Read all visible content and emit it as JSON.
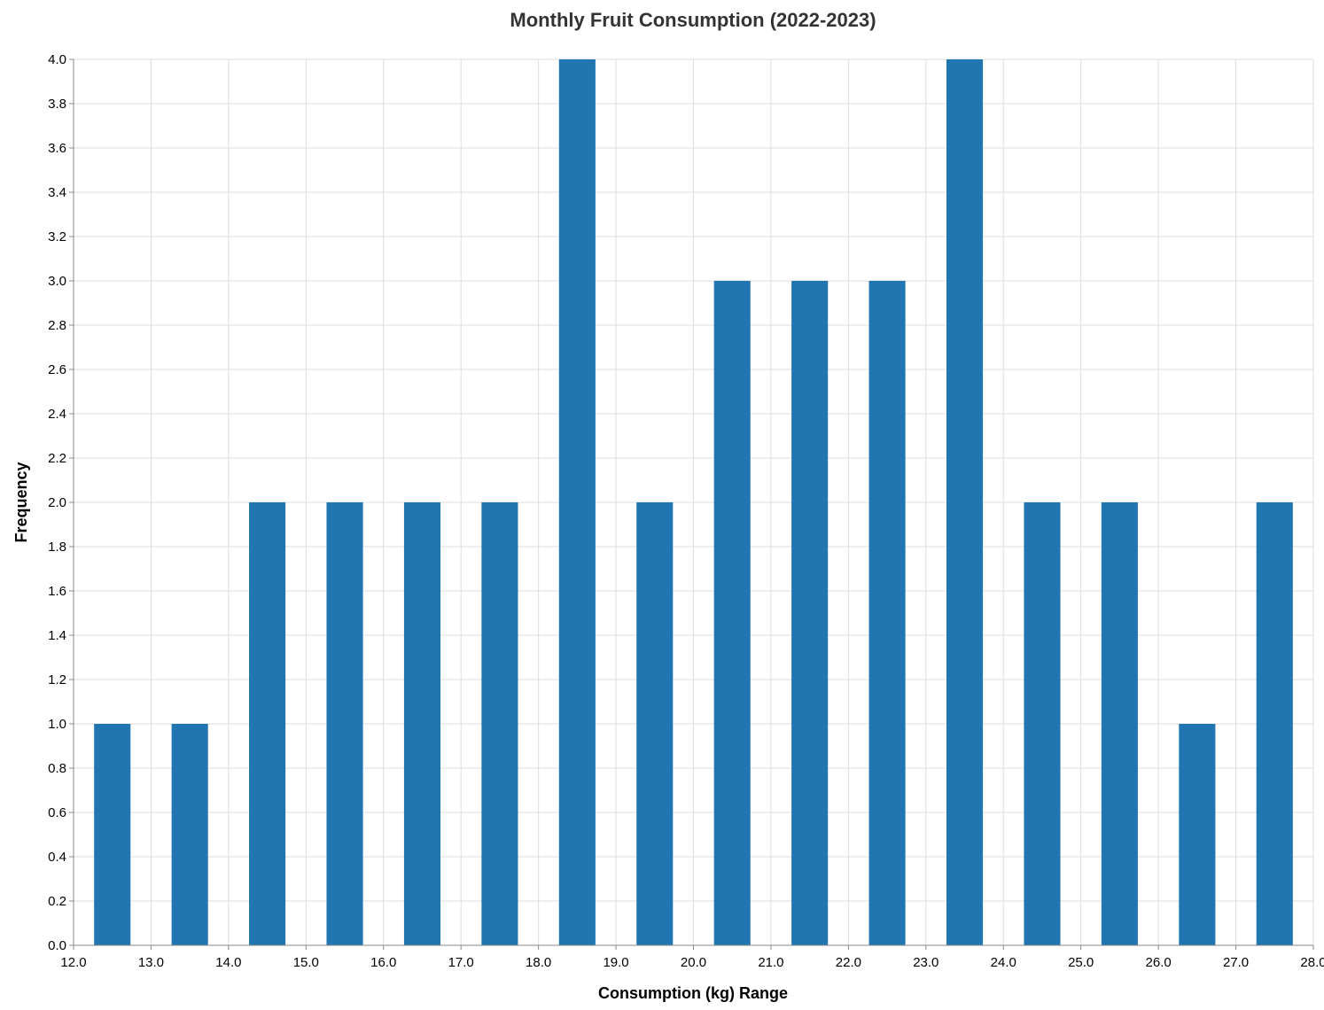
{
  "chart_data": {
    "type": "bar",
    "title": "Monthly Fruit Consumption (2022-2023)",
    "xlabel": "Consumption (kg) Range",
    "ylabel": "Frequency",
    "xlim": [
      12.0,
      28.0
    ],
    "ylim": [
      0,
      4.0
    ],
    "x_ticks": [
      "12.0",
      "13.0",
      "14.0",
      "15.0",
      "16.0",
      "17.0",
      "18.0",
      "19.0",
      "20.0",
      "21.0",
      "22.0",
      "23.0",
      "24.0",
      "25.0",
      "26.0",
      "27.0",
      "28.0"
    ],
    "y_ticks": [
      "0.0",
      "0.2",
      "0.4",
      "0.6",
      "0.8",
      "1.0",
      "1.2",
      "1.4",
      "1.6",
      "1.8",
      "2.0",
      "2.2",
      "2.4",
      "2.6",
      "2.8",
      "3.0",
      "3.2",
      "3.4",
      "3.6",
      "3.8",
      "4.0"
    ],
    "bins": [
      {
        "start": 12.0,
        "end": 13.0,
        "count": 1
      },
      {
        "start": 13.0,
        "end": 14.0,
        "count": 1
      },
      {
        "start": 14.0,
        "end": 15.0,
        "count": 2
      },
      {
        "start": 15.0,
        "end": 16.0,
        "count": 2
      },
      {
        "start": 16.0,
        "end": 17.0,
        "count": 2
      },
      {
        "start": 17.0,
        "end": 18.0,
        "count": 2
      },
      {
        "start": 18.0,
        "end": 19.0,
        "count": 4
      },
      {
        "start": 19.0,
        "end": 20.0,
        "count": 2
      },
      {
        "start": 20.0,
        "end": 21.0,
        "count": 3
      },
      {
        "start": 21.0,
        "end": 22.0,
        "count": 3
      },
      {
        "start": 22.0,
        "end": 23.0,
        "count": 3
      },
      {
        "start": 23.0,
        "end": 24.0,
        "count": 4
      },
      {
        "start": 24.0,
        "end": 25.0,
        "count": 2
      },
      {
        "start": 25.0,
        "end": 26.0,
        "count": 2
      },
      {
        "start": 26.0,
        "end": 27.0,
        "count": 1
      },
      {
        "start": 27.0,
        "end": 28.0,
        "count": 2
      }
    ],
    "grid": true,
    "bar_color": "#2176b2"
  }
}
